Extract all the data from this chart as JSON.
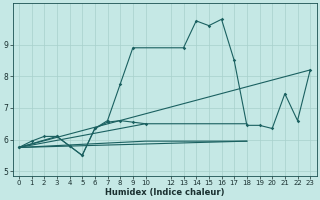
{
  "xlabel": "Humidex (Indice chaleur)",
  "background_color": "#c5e8e5",
  "grid_color": "#a8d0cc",
  "line_color": "#1a6060",
  "xlim": [
    -0.5,
    23.5
  ],
  "ylim": [
    4.85,
    10.3
  ],
  "yticks": [
    5,
    6,
    7,
    8,
    9
  ],
  "xticks": [
    0,
    1,
    2,
    3,
    4,
    5,
    6,
    7,
    8,
    9,
    10,
    12,
    13,
    14,
    15,
    16,
    17,
    18,
    19,
    20,
    21,
    22,
    23
  ],
  "curve_main": {
    "x": [
      0,
      3,
      4,
      5,
      6,
      7,
      8,
      9,
      13,
      14,
      15,
      16,
      17,
      18,
      19,
      20,
      21,
      22,
      23
    ],
    "y": [
      5.75,
      6.1,
      5.8,
      5.5,
      6.35,
      6.6,
      7.75,
      8.9,
      8.9,
      9.75,
      9.6,
      9.8,
      8.5,
      6.45,
      6.45,
      6.35,
      7.45,
      6.6,
      8.2
    ]
  },
  "curve_with_markers": {
    "x": [
      0,
      1,
      2,
      3,
      4,
      5,
      6,
      7,
      8,
      9,
      10
    ],
    "y": [
      5.75,
      5.95,
      6.1,
      6.1,
      5.8,
      5.5,
      6.35,
      6.55,
      6.6,
      6.55,
      6.5
    ]
  },
  "flat_line1": {
    "x": [
      0,
      10,
      12,
      13,
      14,
      15,
      16,
      17,
      18
    ],
    "y": [
      5.75,
      6.5,
      6.5,
      6.5,
      6.5,
      6.5,
      6.5,
      6.5,
      6.5
    ]
  },
  "flat_line2": {
    "x": [
      0,
      10,
      12,
      13,
      14,
      15,
      16,
      17,
      18
    ],
    "y": [
      5.75,
      5.95,
      5.95,
      5.95,
      5.95,
      5.95,
      5.95,
      5.95,
      5.95
    ]
  },
  "diag_line": {
    "x": [
      0,
      23
    ],
    "y": [
      5.75,
      8.2
    ]
  },
  "diag_line2": {
    "x": [
      0,
      18
    ],
    "y": [
      5.75,
      5.95
    ]
  }
}
